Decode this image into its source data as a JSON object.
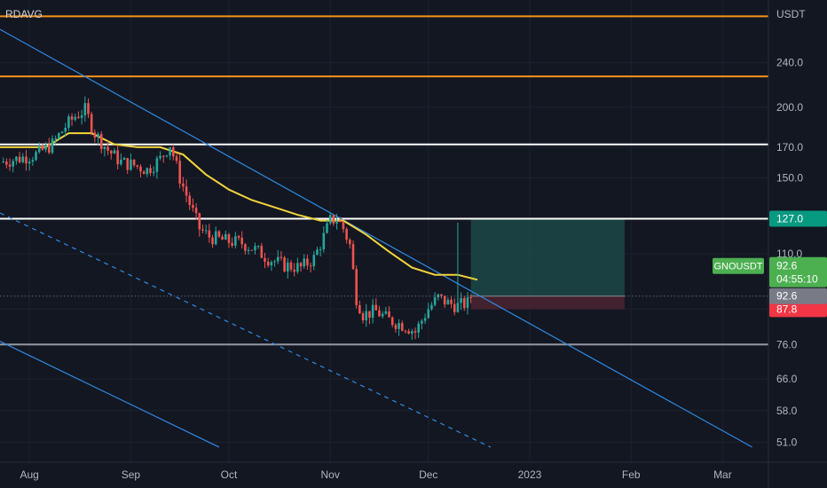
{
  "indicator_label": "RDAVG",
  "currency": "USDT",
  "symbol": "GNOUSDT",
  "last_price": "92.6",
  "countdown": "04:55:10",
  "colors": {
    "background": "#131722",
    "grid": "#1e2230",
    "up": "#26a69a",
    "down": "#ef5350",
    "ma": "#f2d43c",
    "channel": "#2f8be6",
    "resistance_orange": "#f7931a",
    "level_white": "#ffffff",
    "level_gray": "#9598a1",
    "target_zone": "#1d4f4d",
    "stop_zone": "#4b2530",
    "price_tag": "#4caf50",
    "target_tag": "#089981",
    "stop_tag": "#f23645",
    "current_tag": "#787b86"
  },
  "chart_data": {
    "type": "line",
    "title": "",
    "y_axis": {
      "scale": "log",
      "range": [
        47,
        310
      ],
      "ticks": [
        "240.0",
        "200.0",
        "170.0",
        "150.0",
        "127.0",
        "110.0",
        "92.6",
        "87.8",
        "76.0",
        "66.0",
        "58.0",
        "51.0"
      ]
    },
    "x_axis": {
      "range": [
        "2022-07-23",
        "2023-03-15"
      ],
      "ticks": [
        {
          "label": "Aug",
          "date": "2022-08-01"
        },
        {
          "label": "Sep",
          "date": "2022-09-01"
        },
        {
          "label": "Oct",
          "date": "2022-10-01"
        },
        {
          "label": "Nov",
          "date": "2022-11-01"
        },
        {
          "label": "Dec",
          "date": "2022-12-01"
        },
        {
          "label": "2023",
          "date": "2023-01-01"
        },
        {
          "label": "Feb",
          "date": "2023-02-01"
        },
        {
          "label": "Mar",
          "date": "2023-03-01"
        }
      ]
    },
    "price_series": [
      [
        "2022-07-23",
        160
      ],
      [
        "2022-07-28",
        162
      ],
      [
        "2022-08-03",
        165
      ],
      [
        "2022-08-08",
        172
      ],
      [
        "2022-08-12",
        185
      ],
      [
        "2022-08-15",
        193
      ],
      [
        "2022-08-18",
        198
      ],
      [
        "2022-08-21",
        180
      ],
      [
        "2022-08-25",
        168
      ],
      [
        "2022-08-29",
        160
      ],
      [
        "2022-09-02",
        158
      ],
      [
        "2022-09-06",
        155
      ],
      [
        "2022-09-10",
        162
      ],
      [
        "2022-09-13",
        172
      ],
      [
        "2022-09-16",
        150
      ],
      [
        "2022-09-19",
        135
      ],
      [
        "2022-09-22",
        122
      ],
      [
        "2022-09-25",
        118
      ],
      [
        "2022-09-30",
        116
      ],
      [
        "2022-10-05",
        115
      ],
      [
        "2022-10-09",
        112
      ],
      [
        "2022-10-13",
        108
      ],
      [
        "2022-10-18",
        105
      ],
      [
        "2022-10-23",
        104
      ],
      [
        "2022-10-27",
        108
      ],
      [
        "2022-10-30",
        118
      ],
      [
        "2022-11-01",
        126
      ],
      [
        "2022-11-03",
        127
      ],
      [
        "2022-11-05",
        122
      ],
      [
        "2022-11-07",
        114
      ],
      [
        "2022-11-09",
        92
      ],
      [
        "2022-11-11",
        86
      ],
      [
        "2022-11-15",
        87
      ],
      [
        "2022-11-19",
        84
      ],
      [
        "2022-11-24",
        82
      ],
      [
        "2022-11-27",
        80
      ],
      [
        "2022-12-01",
        88
      ],
      [
        "2022-12-04",
        92
      ],
      [
        "2022-12-07",
        90
      ],
      [
        "2022-12-10",
        89
      ],
      [
        "2022-12-13",
        90
      ],
      [
        "2022-12-14",
        92.6
      ]
    ],
    "moving_average": [
      [
        "2022-07-23",
        170
      ],
      [
        "2022-07-30",
        170
      ],
      [
        "2022-08-06",
        170
      ],
      [
        "2022-08-13",
        180
      ],
      [
        "2022-08-20",
        180
      ],
      [
        "2022-08-27",
        172
      ],
      [
        "2022-09-03",
        170
      ],
      [
        "2022-09-10",
        170
      ],
      [
        "2022-09-17",
        165
      ],
      [
        "2022-09-24",
        152
      ],
      [
        "2022-10-01",
        143
      ],
      [
        "2022-10-08",
        137
      ],
      [
        "2022-10-15",
        133
      ],
      [
        "2022-10-22",
        129
      ],
      [
        "2022-10-29",
        126
      ],
      [
        "2022-11-05",
        126
      ],
      [
        "2022-11-12",
        119
      ],
      [
        "2022-11-19",
        111
      ],
      [
        "2022-11-26",
        104
      ],
      [
        "2022-12-03",
        101
      ],
      [
        "2022-12-10",
        101
      ],
      [
        "2022-12-16",
        99
      ]
    ],
    "horizontal_levels": [
      {
        "value": 290,
        "color": "resistance_orange"
      },
      {
        "value": 227,
        "color": "resistance_orange"
      },
      {
        "value": 172,
        "color": "level_white"
      },
      {
        "value": 127,
        "color": "level_white"
      },
      {
        "value": 76,
        "color": "level_gray"
      }
    ],
    "trendlines": [
      {
        "from": [
          "2022-07-23",
          275
        ],
        "to": [
          "2023-03-10",
          50
        ],
        "style": "solid"
      },
      {
        "from": [
          "2022-07-23",
          130
        ],
        "to": [
          "2022-12-20",
          50
        ],
        "style": "dashed"
      },
      {
        "from": [
          "2022-07-23",
          77
        ],
        "to": [
          "2022-09-28",
          50
        ],
        "style": "solid"
      }
    ],
    "position": {
      "entry": 92.6,
      "target": 127.0,
      "stop": 87.8,
      "start": "2022-12-14",
      "end": "2023-01-30"
    },
    "spike": {
      "date": "2022-12-10",
      "high": 125,
      "low": 89
    }
  }
}
